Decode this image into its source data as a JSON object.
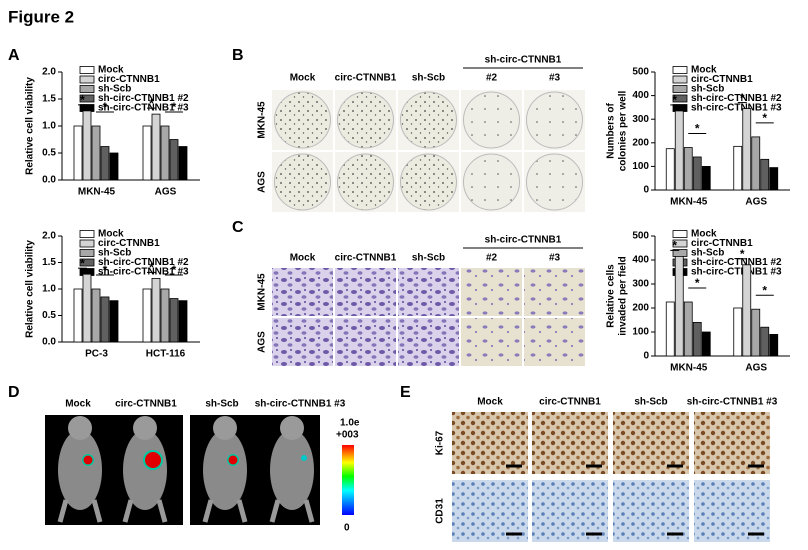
{
  "figure": {
    "title": "Figure 2",
    "panels": [
      "A",
      "B",
      "C",
      "D",
      "E"
    ],
    "B": {
      "columns": [
        "Mock",
        "circ-CTNNB1",
        "sh-Scb",
        "#2",
        "#3"
      ],
      "group": "sh-circ-CTNNB1",
      "rows": [
        "MKN-45",
        "AGS"
      ]
    },
    "C": {
      "columns": [
        "Mock",
        "circ-CTNNB1",
        "sh-Scb",
        "#2",
        "#3"
      ],
      "group": "sh-circ-CTNNB1",
      "rows": [
        "MKN-45",
        "AGS"
      ]
    },
    "D": {
      "columns": [
        "Mock",
        "circ-CTNNB1",
        "sh-Scb",
        "sh-circ-CTNNB1 #3"
      ],
      "scale_max": [
        "1.0e",
        "+003"
      ],
      "scale_min": "0"
    },
    "E": {
      "columns": [
        "Mock",
        "circ-CTNNB1",
        "sh-Scb",
        "sh-circ-CTNNB1 #3"
      ],
      "rows": [
        "Ki-67",
        "CD31"
      ]
    }
  },
  "chart_data": [
    {
      "type": "bar",
      "y_label": "Relative cell viability",
      "categories": [
        "MKN-45",
        "AGS"
      ],
      "ylim": [
        0,
        2
      ],
      "yticks": [
        {
          "value": 0,
          "label": "0.0"
        },
        {
          "value": 0.5,
          "label": "0.5"
        },
        {
          "value": 1,
          "label": "1.0"
        },
        {
          "value": 1.5,
          "label": "1.5"
        },
        {
          "value": 2,
          "label": "2.0"
        }
      ],
      "series": [
        {
          "name": "Mock",
          "color": "#ffffff",
          "values": [
            1.0,
            1.0
          ]
        },
        {
          "name": "circ-CTNNB1",
          "color": "#d4d4d4",
          "values": [
            1.28,
            1.22
          ]
        },
        {
          "name": "sh-Scb",
          "color": "#a8a8a8",
          "values": [
            1.0,
            1.0
          ]
        },
        {
          "name": "sh-circ-CTNNB1 #2",
          "color": "#606060",
          "values": [
            0.62,
            0.75
          ]
        },
        {
          "name": "sh-circ-CTNNB1 #3",
          "color": "#000000",
          "values": [
            0.5,
            0.62
          ]
        }
      ],
      "annotations": [
        "*",
        "*",
        "*",
        "*"
      ]
    },
    {
      "type": "bar",
      "y_label": "Relative cell viability",
      "categories": [
        "PC-3",
        "HCT-116"
      ],
      "ylim": [
        0,
        2
      ],
      "yticks": [
        {
          "value": 0,
          "label": "0.0"
        },
        {
          "value": 0.5,
          "label": "0.5"
        },
        {
          "value": 1,
          "label": "1.0"
        },
        {
          "value": 1.5,
          "label": "1.5"
        },
        {
          "value": 2,
          "label": "2.0"
        }
      ],
      "series": [
        {
          "name": "Mock",
          "color": "#ffffff",
          "values": [
            1.0,
            1.0
          ]
        },
        {
          "name": "circ-CTNNB1",
          "color": "#d4d4d4",
          "values": [
            1.28,
            1.2
          ]
        },
        {
          "name": "sh-Scb",
          "color": "#a8a8a8",
          "values": [
            1.0,
            1.0
          ]
        },
        {
          "name": "sh-circ-CTNNB1 #2",
          "color": "#606060",
          "values": [
            0.85,
            0.82
          ]
        },
        {
          "name": "sh-circ-CTNNB1 #3",
          "color": "#000000",
          "values": [
            0.78,
            0.78
          ]
        }
      ],
      "annotations": [
        "*",
        "*",
        "*",
        "*"
      ]
    },
    {
      "type": "bar",
      "y_label": [
        "Numbers of",
        "colonies per well"
      ],
      "categories": [
        "MKN-45",
        "AGS"
      ],
      "ylim": [
        0,
        500
      ],
      "yticks": [
        0,
        100,
        200,
        300,
        400,
        500
      ],
      "series": [
        {
          "name": "Mock",
          "color": "#ffffff",
          "values": [
            175,
            185
          ]
        },
        {
          "name": "circ-CTNNB1",
          "color": "#d4d4d4",
          "values": [
            335,
            345
          ]
        },
        {
          "name": "sh-Scb",
          "color": "#a8a8a8",
          "values": [
            180,
            225
          ]
        },
        {
          "name": "sh-circ-CTNNB1 #2",
          "color": "#606060",
          "values": [
            140,
            130
          ]
        },
        {
          "name": "sh-circ-CTNNB1 #3",
          "color": "#000000",
          "values": [
            100,
            95
          ]
        }
      ],
      "annotations": [
        "*",
        "*",
        "*",
        "*"
      ]
    },
    {
      "type": "bar",
      "y_label": [
        "Relative cells",
        "invaded per field"
      ],
      "categories": [
        "MKN-45",
        "AGS"
      ],
      "ylim": [
        0,
        500
      ],
      "yticks": [
        0,
        100,
        200,
        300,
        400,
        500
      ],
      "series": [
        {
          "name": "Mock",
          "color": "#ffffff",
          "values": [
            225,
            200
          ]
        },
        {
          "name": "circ-CTNNB1",
          "color": "#d4d4d4",
          "values": [
            415,
            380
          ]
        },
        {
          "name": "sh-Scb",
          "color": "#a8a8a8",
          "values": [
            225,
            195
          ]
        },
        {
          "name": "sh-circ-CTNNB1 #2",
          "color": "#606060",
          "values": [
            140,
            120
          ]
        },
        {
          "name": "sh-circ-CTNNB1 #3",
          "color": "#000000",
          "values": [
            100,
            90
          ]
        }
      ],
      "annotations": [
        "*",
        "*",
        "*",
        "*"
      ]
    }
  ]
}
